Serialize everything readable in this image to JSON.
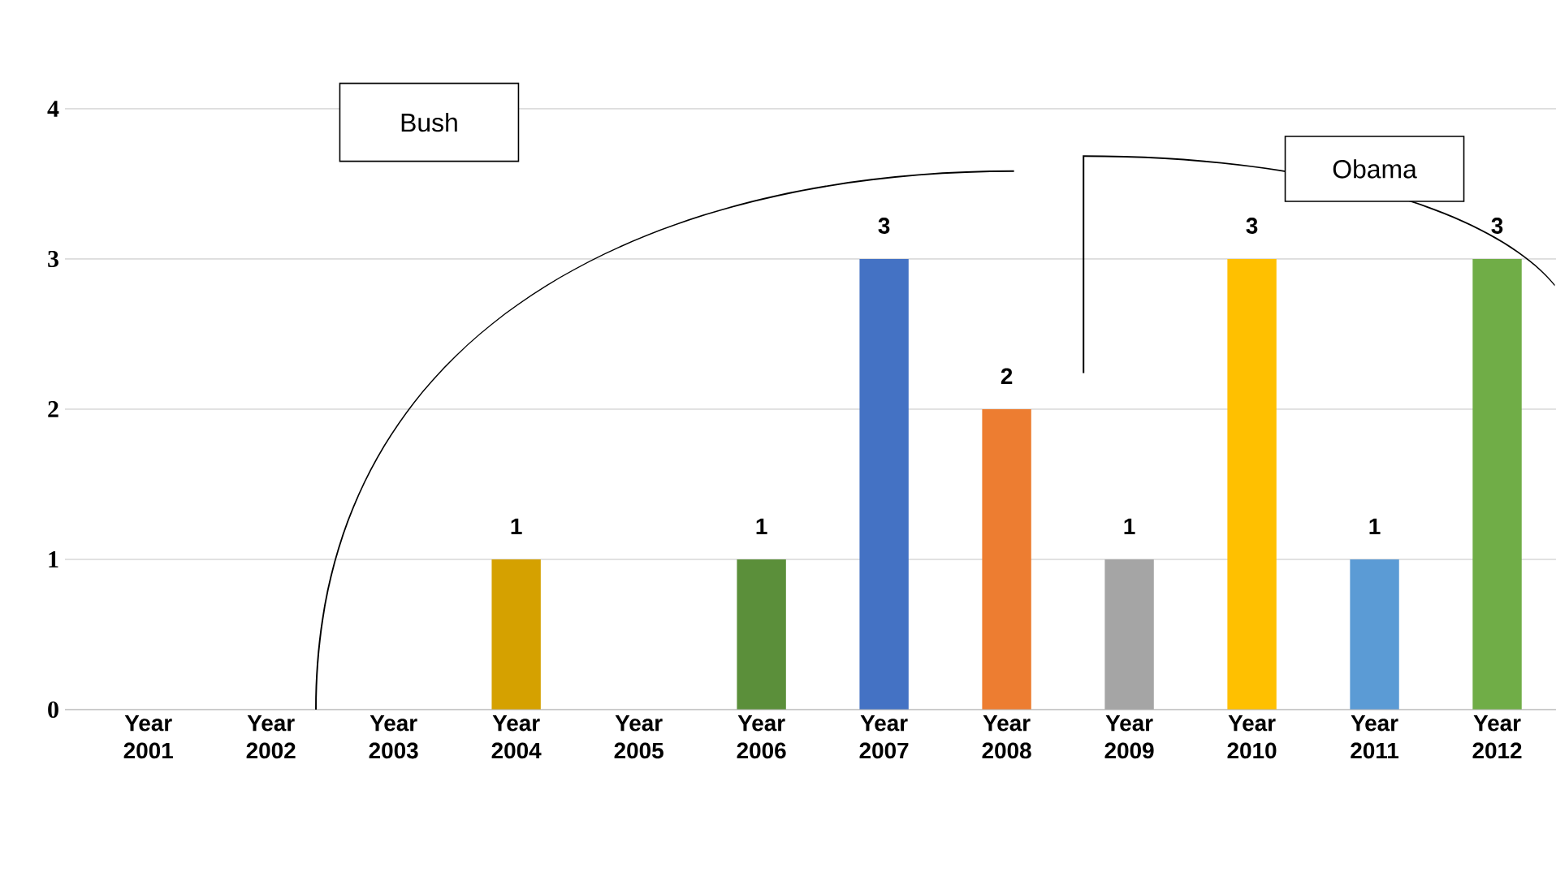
{
  "chart_data": {
    "type": "bar",
    "categories": [
      "Year 2001",
      "Year 2002",
      "Year 2003",
      "Year 2004",
      "Year 2005",
      "Year 2006",
      "Year 2007",
      "Year 2008",
      "Year 2009",
      "Year 2010",
      "Year 2011",
      "Year 2012"
    ],
    "values": [
      0,
      0,
      0,
      1,
      0,
      1,
      3,
      2,
      1,
      3,
      1,
      3
    ],
    "colors": [
      "#4472c4",
      "#4472c4",
      "#4472c4",
      "#d5a100",
      "#4472c4",
      "#5b8f3a",
      "#4472c4",
      "#ed7d31",
      "#a5a5a5",
      "#ffc000",
      "#5b9bd5",
      "#70ad47"
    ],
    "value_labels": [
      null,
      null,
      null,
      "1",
      null,
      "1",
      "3",
      "2",
      "1",
      "3",
      "1",
      "3"
    ],
    "ylim": [
      0,
      4
    ],
    "yticks": [
      0,
      1,
      2,
      3,
      4
    ],
    "grid": "y",
    "annotations": [
      "Bush",
      "Obama"
    ]
  }
}
